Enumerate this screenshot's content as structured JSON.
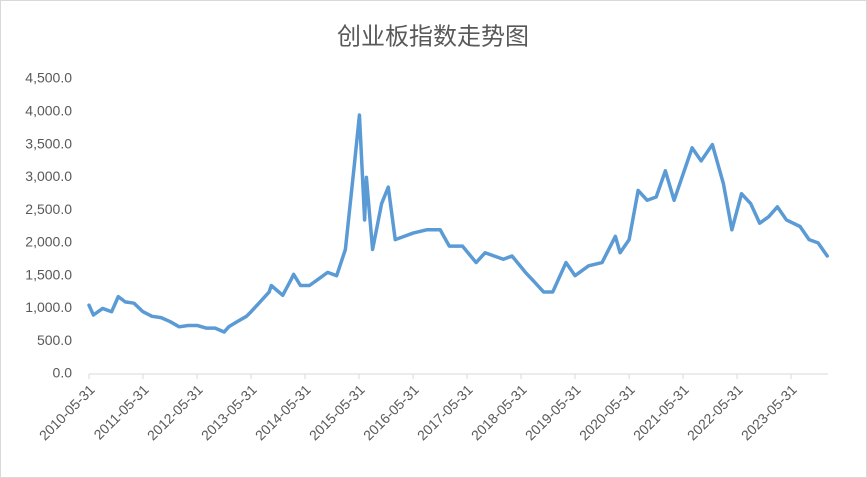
{
  "chart_data": {
    "type": "line",
    "title": "创业板指数走势图",
    "x": [
      "2010-05-31",
      "2010-06-30",
      "2010-08-31",
      "2010-10-31",
      "2010-12-15",
      "2011-01-31",
      "2011-03-31",
      "2011-05-31",
      "2011-07-31",
      "2011-09-30",
      "2011-11-30",
      "2012-01-31",
      "2012-03-31",
      "2012-05-31",
      "2012-07-31",
      "2012-09-30",
      "2012-11-30",
      "2012-12-31",
      "2013-02-28",
      "2013-04-30",
      "2013-05-31",
      "2013-07-31",
      "2013-09-30",
      "2013-10-15",
      "2013-12-31",
      "2014-02-28",
      "2014-03-15",
      "2014-04-30",
      "2014-06-30",
      "2014-08-31",
      "2014-10-31",
      "2014-12-31",
      "2015-02-28",
      "2015-04-30",
      "2015-06-03",
      "2015-07-08",
      "2015-07-20",
      "2015-08-31",
      "2015-10-31",
      "2015-12-15",
      "2016-01-31",
      "2016-03-31",
      "2016-05-31",
      "2016-08-31",
      "2016-11-30",
      "2017-01-31",
      "2017-04-30",
      "2017-07-31",
      "2017-09-30",
      "2017-11-30",
      "2018-01-31",
      "2018-03-31",
      "2018-06-30",
      "2018-08-31",
      "2018-10-31",
      "2018-12-31",
      "2019-03-31",
      "2019-05-31",
      "2019-08-31",
      "2019-11-30",
      "2020-02-28",
      "2020-03-31",
      "2020-05-31",
      "2020-07-31",
      "2020-09-30",
      "2020-11-30",
      "2021-01-31",
      "2021-03-31",
      "2021-05-31",
      "2021-07-31",
      "2021-09-30",
      "2021-12-15",
      "2022-02-28",
      "2022-04-26",
      "2022-06-30",
      "2022-08-31",
      "2022-10-31",
      "2022-12-31",
      "2023-02-28",
      "2023-04-30",
      "2023-07-31",
      "2023-09-30",
      "2023-11-30",
      "2024-01-31"
    ],
    "values": [
      1050,
      900,
      1000,
      950,
      1180,
      1100,
      1080,
      950,
      880,
      860,
      800,
      720,
      740,
      740,
      700,
      700,
      640,
      720,
      800,
      880,
      950,
      1100,
      1250,
      1350,
      1200,
      1450,
      1520,
      1350,
      1350,
      1450,
      1550,
      1500,
      1900,
      3200,
      3950,
      2350,
      3000,
      1900,
      2600,
      2850,
      2050,
      2100,
      2150,
      2200,
      2200,
      1950,
      1950,
      1700,
      1850,
      1800,
      1750,
      1800,
      1550,
      1400,
      1250,
      1250,
      1700,
      1500,
      1650,
      1700,
      2100,
      1850,
      2050,
      2800,
      2650,
      2700,
      3100,
      2650,
      3050,
      3450,
      3250,
      3500,
      2900,
      2200,
      2750,
      2600,
      2300,
      2400,
      2550,
      2350,
      2250,
      2050,
      2000,
      1800
    ],
    "color": "#5b9bd5",
    "xlim": [
      "2010-05-31",
      "2024-02-05"
    ],
    "xticks": [
      "2010-05-31",
      "2011-05-31",
      "2012-05-31",
      "2013-05-31",
      "2014-05-31",
      "2015-05-31",
      "2016-05-31",
      "2017-05-31",
      "2018-05-31",
      "2019-05-31",
      "2020-05-31",
      "2021-05-31",
      "2022-05-31",
      "2023-05-31"
    ],
    "ylim": [
      0,
      4500
    ],
    "yticks": [
      {
        "value": 0,
        "label": "0.0"
      },
      {
        "value": 500,
        "label": "500.0"
      },
      {
        "value": 1000,
        "label": "1,000.0"
      },
      {
        "value": 1500,
        "label": "1,500.0"
      },
      {
        "value": 2000,
        "label": "2,000.0"
      },
      {
        "value": 2500,
        "label": "2,500.0"
      },
      {
        "value": 3000,
        "label": "3,000.0"
      },
      {
        "value": 3500,
        "label": "3,500.0"
      },
      {
        "value": 4000,
        "label": "4,000.0"
      },
      {
        "value": 4500,
        "label": "4,500.0"
      }
    ],
    "grid": false
  }
}
